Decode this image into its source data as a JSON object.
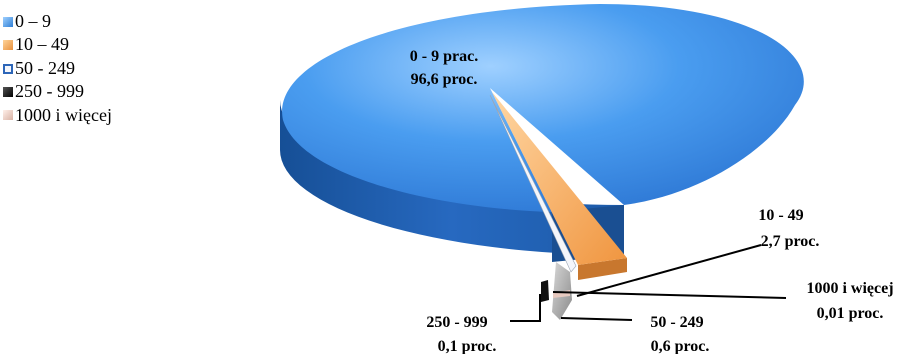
{
  "chart_data": {
    "type": "pie",
    "title": "",
    "legend_position": "top-left",
    "slices": [
      {
        "name": "0 – 9",
        "label": "0 - 9 prac.",
        "value_label": "96,6 proc.",
        "value": 96.6,
        "color": "#3a8fe3"
      },
      {
        "name": "10 – 49",
        "label": "10 - 49",
        "value_label": "2,7 proc.",
        "value": 2.7,
        "color": "#f4a559"
      },
      {
        "name": "50 - 249",
        "label": "50 - 249",
        "value_label": "0,6 proc.",
        "value": 0.6,
        "color": "#f4f6fb"
      },
      {
        "name": "250 - 999",
        "label": "250 - 999",
        "value_label": "0,1 proc.",
        "value": 0.1,
        "color": "#1b1b1b"
      },
      {
        "name": "1000 i więcej",
        "label": "1000 i więcej",
        "value_label": "0,01 proc.",
        "value": 0.01,
        "color": "#e7c9bf"
      }
    ]
  }
}
